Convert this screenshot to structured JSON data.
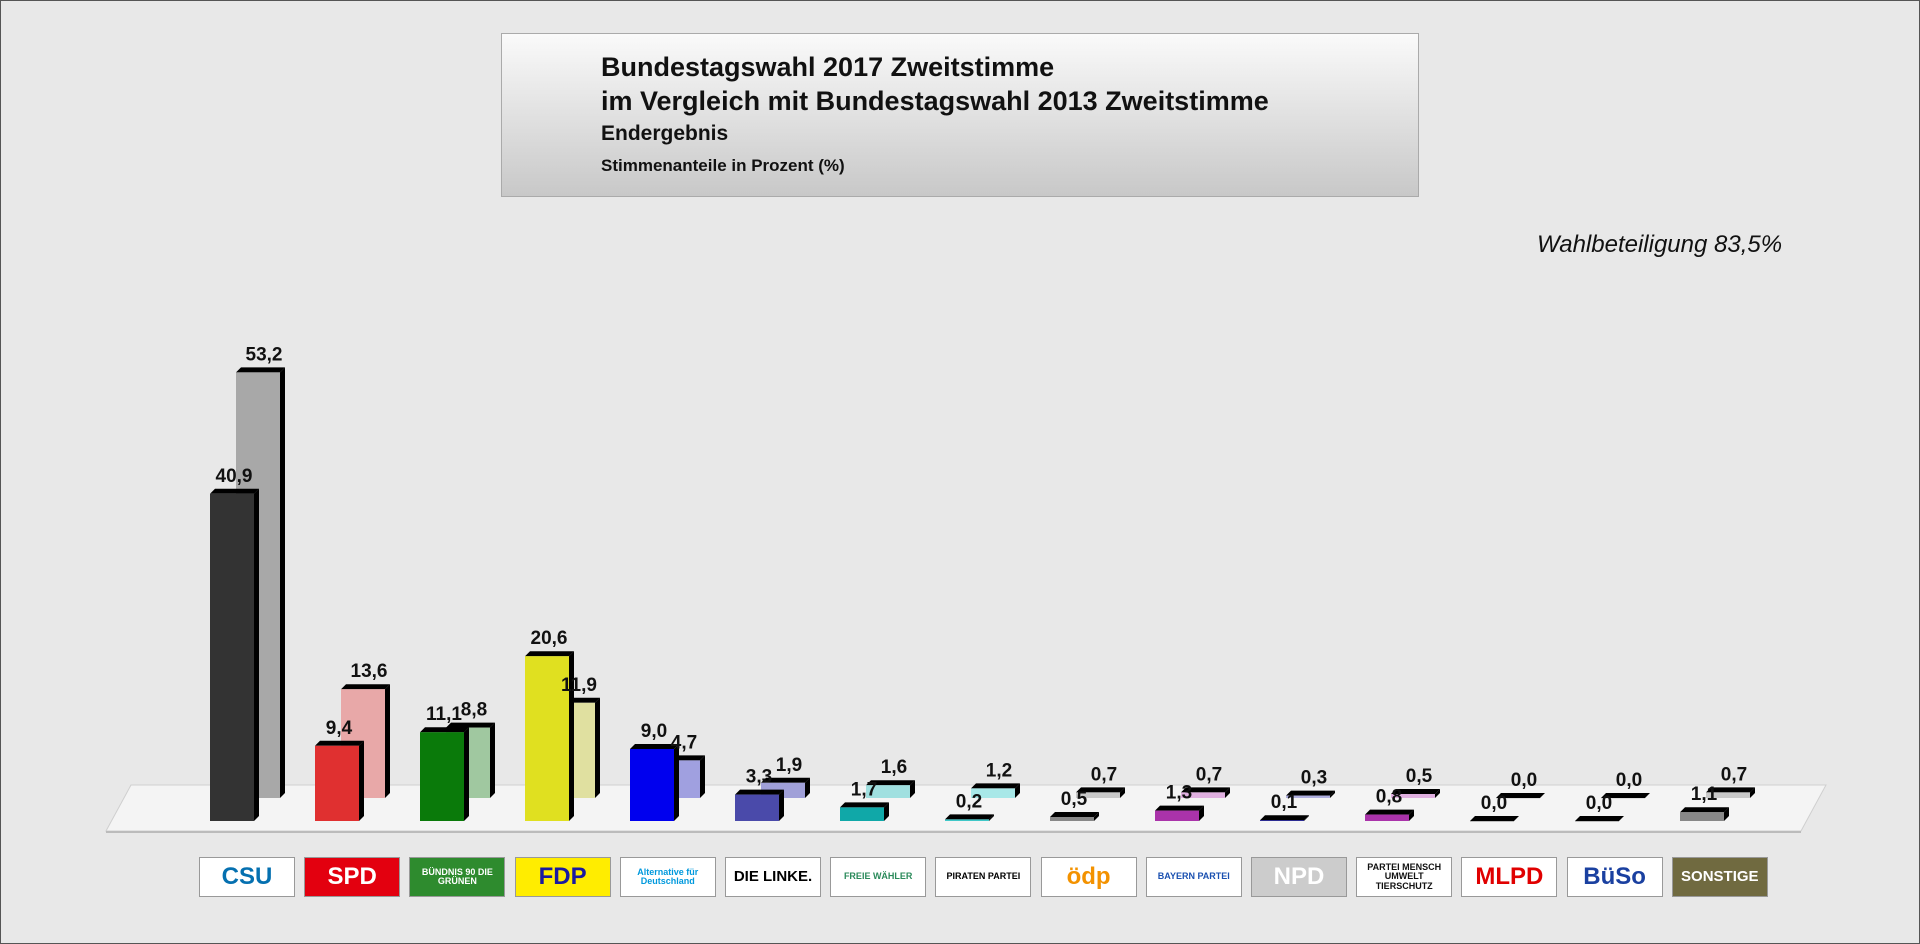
{
  "header": {
    "line1": "Bundestagswahl 2017 Zweitstimme",
    "line2": "im Vergleich mit Bundestagswahl 2013 Zweitstimme",
    "line3": "Endergebnis",
    "line4": "Stimmenanteile in Prozent (%)"
  },
  "turnout": "Wahlbeteiligung 83,5%",
  "chart_data": {
    "type": "bar",
    "title": "Bundestagswahl 2017 Zweitstimme",
    "ylim": [
      0,
      55
    ],
    "grid": false,
    "categories": [
      "CSU",
      "SPD",
      "BÜNDNIS 90 DIE GRÜNEN",
      "FDP",
      "Alternative für Deutschland",
      "DIE LINKE.",
      "FREIE WÄHLER",
      "PIRATEN PARTEI",
      "ödp",
      "BAYERN PARTEI",
      "NPD",
      "PARTEI MENSCH UMWELT TIERSCHUTZ",
      "MLPD",
      "BüSo",
      "SONSTIGE"
    ],
    "series": [
      {
        "values": [
          40.9,
          9.4,
          11.1,
          20.6,
          9.0,
          3.3,
          1.7,
          0.2,
          0.5,
          1.3,
          0.1,
          0.8,
          0.0,
          0.0,
          1.1
        ],
        "labels": [
          "40,9",
          "9,4",
          "11,1",
          "20,6",
          "9,0",
          "3,3",
          "1,7",
          "0,2",
          "0,5",
          "1,3",
          "0,1",
          "0,8",
          "0,0",
          "0,0",
          "1,1"
        ]
      },
      {
        "values": [
          53.2,
          13.6,
          8.8,
          11.9,
          4.7,
          1.9,
          1.6,
          1.2,
          0.7,
          0.7,
          0.3,
          0.5,
          0.0,
          0.0,
          0.7
        ],
        "labels": [
          "53,2",
          "13,6",
          "8,8",
          "11,9",
          "4,7",
          "1,9",
          "1,6",
          "1,2",
          "0,7",
          "0,7",
          "0,3",
          "0,5",
          "0,0",
          "0,0",
          "0,7"
        ]
      }
    ],
    "colors_2017": [
      "#333333",
      "#e03030",
      "#0a7a0a",
      "#e0e020",
      "#0000ee",
      "#4a4aaa",
      "#10a8a8",
      "#40c8c8",
      "#888888",
      "#aa33aa",
      "#1a1a99",
      "#aa33aa",
      "#888888",
      "#888888",
      "#888888"
    ],
    "colors_2013": [
      "#a8a8a8",
      "#e8a8a8",
      "#a0c8a0",
      "#e0e0a0",
      "#a0a0e0",
      "#a0a0d8",
      "#a0e0e0",
      "#a8e8e8",
      "#c8c8c8",
      "#e0b0e0",
      "#b0b0e0",
      "#e0b0e0",
      "#c8c8c8",
      "#c8c8c8",
      "#c8c8c8"
    ]
  },
  "legend": {
    "logos": [
      {
        "text": "CSU",
        "bg": "#ffffff",
        "fg": "#0570b0"
      },
      {
        "text": "SPD",
        "bg": "#e3000f",
        "fg": "#ffffff"
      },
      {
        "text": "BÜNDNIS 90 DIE GRÜNEN",
        "bg": "#2e8b2e",
        "fg": "#ffffff"
      },
      {
        "text": "FDP",
        "bg": "#ffed00",
        "fg": "#1a1aa0"
      },
      {
        "text": "Alternative für Deutschland",
        "bg": "#ffffff",
        "fg": "#0099dd"
      },
      {
        "text": "DIE LINKE.",
        "bg": "#ffffff",
        "fg": "#000000"
      },
      {
        "text": "FREIE WÄHLER",
        "bg": "#ffffff",
        "fg": "#2a8a5a"
      },
      {
        "text": "PIRATEN PARTEI",
        "bg": "#ffffff",
        "fg": "#000000"
      },
      {
        "text": "ödp",
        "bg": "#ffffff",
        "fg": "#f39200"
      },
      {
        "text": "BAYERN PARTEI",
        "bg": "#ffffff",
        "fg": "#1a50b0"
      },
      {
        "text": "NPD",
        "bg": "#cccccc",
        "fg": "#ffffff"
      },
      {
        "text": "PARTEI MENSCH UMWELT TIERSCHUTZ",
        "bg": "#ffffff",
        "fg": "#111111"
      },
      {
        "text": "MLPD",
        "bg": "#ffffff",
        "fg": "#e00000"
      },
      {
        "text": "BüSo",
        "bg": "#ffffff",
        "fg": "#1a40a0"
      },
      {
        "text": "SONSTIGE",
        "bg": "#706a40",
        "fg": "#ffffff"
      }
    ]
  }
}
